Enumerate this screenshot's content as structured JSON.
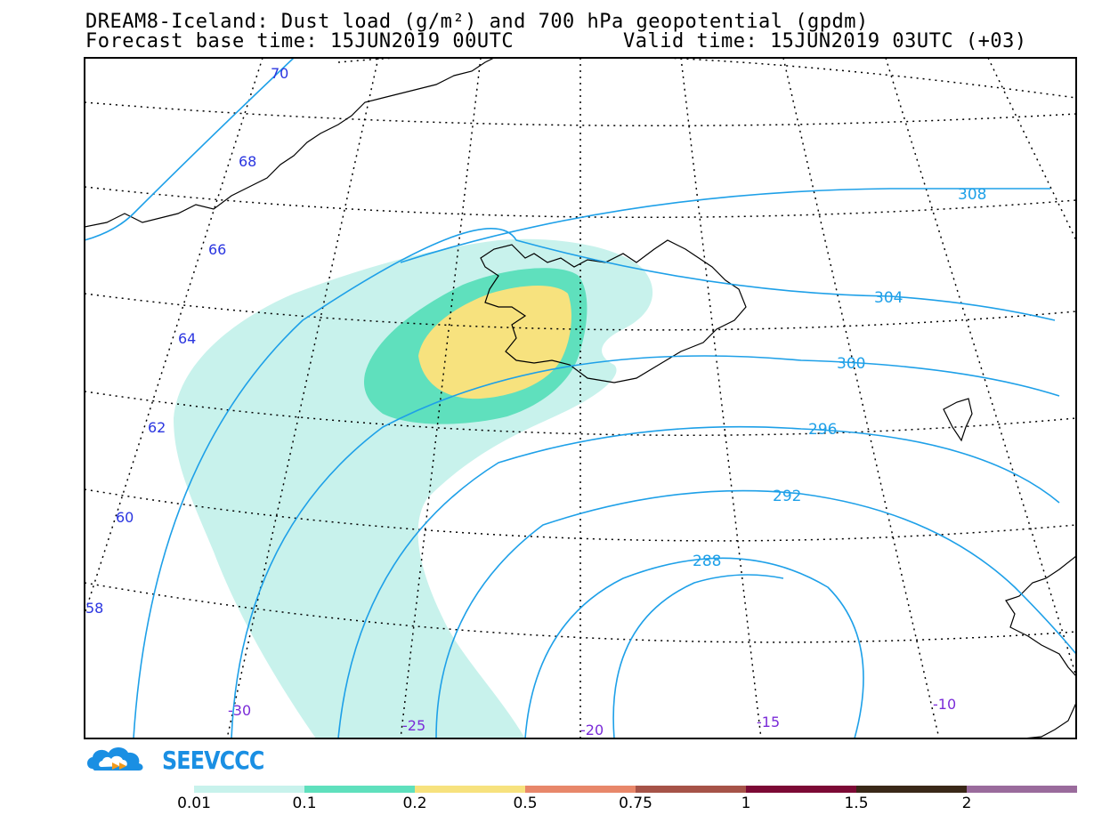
{
  "title": {
    "line1": "DREAM8-Iceland: Dust load (g/m²) and 700 hPa geopotential (gpdm)",
    "base_time": "Forecast base time: 15JUN2019 00UTC",
    "valid_time": "Valid time: 15JUN2019 03UTC (+03)"
  },
  "geopotential_labels": [
    "308",
    "304",
    "300",
    "296",
    "292",
    "288"
  ],
  "latitude_labels": [
    "70",
    "68",
    "66",
    "64",
    "62",
    "60",
    "58"
  ],
  "longitude_labels": [
    "-30",
    "-25",
    "-20",
    "-15",
    "-10"
  ],
  "colorbar": {
    "labels": [
      "0.01",
      "0.1",
      "0.2",
      "0.5",
      "0.75",
      "1",
      "1.5",
      "2"
    ],
    "colors": [
      "#c8f2ec",
      "#5fe0bd",
      "#f7e27e",
      "#e8876a",
      "#a65348",
      "#7c0a35",
      "#3a2818",
      "#9a6b9c"
    ]
  },
  "logo": {
    "text": "SEEVCCC",
    "icon": "cloud-logo-icon",
    "color": "#1a8fe3"
  }
}
